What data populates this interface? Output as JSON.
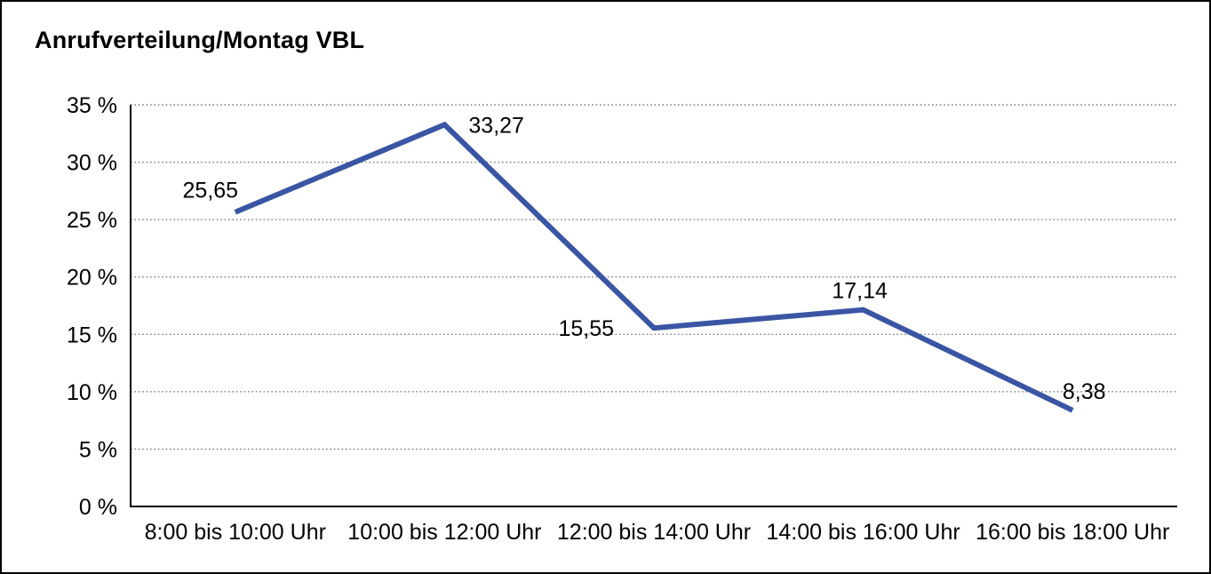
{
  "chart_data": {
    "type": "line",
    "title": "Anrufverteilung/Montag VBL",
    "categories": [
      "8:00 bis 10:00 Uhr",
      "10:00 bis 12:00 Uhr",
      "12:00 bis 14:00 Uhr",
      "14:00 bis 16:00 Uhr",
      "16:00 bis 18:00 Uhr"
    ],
    "values": [
      25.65,
      33.27,
      15.55,
      17.14,
      8.38
    ],
    "point_labels": [
      "25,65",
      "33,27",
      "15,55",
      "17,14",
      "8,38"
    ],
    "y_ticks": [
      "0 %",
      "5 %",
      "10 %",
      "15 %",
      "20 %",
      "25 %",
      "30 %",
      "35 %"
    ],
    "y_tick_step": 5,
    "ylim": [
      0,
      35
    ],
    "xlabel": "",
    "ylabel": "",
    "unit": "%",
    "legend": "none",
    "grid": "horizontal-dotted",
    "colors": {
      "line": "#3a55a3",
      "axis": "#000000",
      "gridline": "#7d7d7d",
      "text": "#000000",
      "background": "#ffffff",
      "border": "#000000"
    }
  }
}
